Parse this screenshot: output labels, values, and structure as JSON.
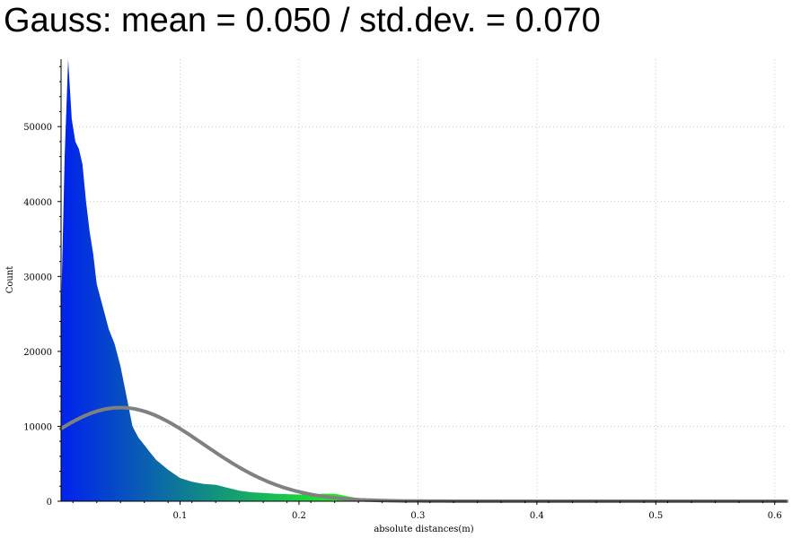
{
  "title": "Gauss: mean = 0.050 / std.dev. = 0.070",
  "chart_data": {
    "type": "histogram",
    "xlabel": "absolute distances(m)",
    "ylabel": "Count",
    "xlim": [
      0.0,
      0.61
    ],
    "ylim": [
      0,
      59000
    ],
    "grid": true,
    "x_ticks": [
      {
        "value": 0.1,
        "label": "0.1"
      },
      {
        "value": 0.2,
        "label": "0.2"
      },
      {
        "value": 0.3,
        "label": "0.3"
      },
      {
        "value": 0.4,
        "label": "0.4"
      },
      {
        "value": 0.5,
        "label": "0.5"
      },
      {
        "value": 0.6,
        "label": "0.6"
      }
    ],
    "y_ticks": [
      {
        "value": 0,
        "label": "0"
      },
      {
        "value": 10000,
        "label": "10000"
      },
      {
        "value": 20000,
        "label": "20000"
      },
      {
        "value": 30000,
        "label": "30000"
      },
      {
        "value": 40000,
        "label": "40000"
      },
      {
        "value": 50000,
        "label": "50000"
      }
    ],
    "color_start": "#0022ee",
    "color_end": "#22ee22",
    "curve_color": "#808080",
    "histogram": {
      "x": [
        0.0,
        0.003,
        0.006,
        0.009,
        0.012,
        0.015,
        0.018,
        0.021,
        0.024,
        0.027,
        0.03,
        0.035,
        0.04,
        0.045,
        0.05,
        0.055,
        0.06,
        0.065,
        0.07,
        0.075,
        0.08,
        0.09,
        0.1,
        0.11,
        0.12,
        0.13,
        0.14,
        0.15,
        0.16,
        0.17,
        0.18,
        0.19,
        0.2,
        0.21,
        0.22,
        0.23,
        0.24,
        0.25,
        0.26,
        0.27,
        0.28,
        0.3,
        0.35,
        0.4,
        0.45,
        0.5,
        0.55,
        0.61
      ],
      "counts": [
        25000,
        46000,
        59000,
        51000,
        48000,
        47000,
        45000,
        40000,
        36000,
        33000,
        29000,
        26000,
        23000,
        21000,
        18000,
        14000,
        10000,
        8500,
        7500,
        6500,
        5500,
        4200,
        3100,
        2600,
        2300,
        2200,
        1800,
        1400,
        1200,
        1100,
        1000,
        950,
        900,
        900,
        1000,
        1000,
        700,
        400,
        250,
        180,
        120,
        70,
        40,
        25,
        15,
        10,
        6,
        3
      ]
    },
    "gauss_curve": {
      "mean": 0.05,
      "std": 0.07,
      "peak": 12500
    }
  }
}
